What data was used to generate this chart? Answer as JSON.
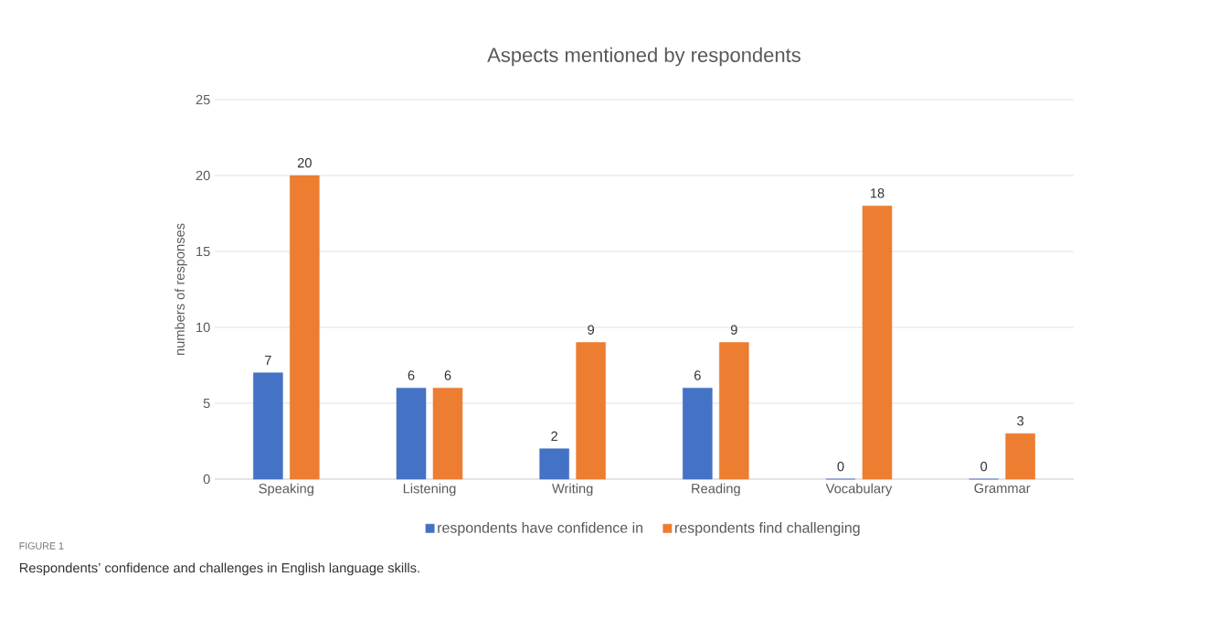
{
  "chart_data": {
    "type": "bar",
    "title": "Aspects mentioned by respondents",
    "ylabel": "numbers of responses",
    "categories": [
      "Speaking",
      "Listening",
      "Writing",
      "Reading",
      "Vocabulary",
      "Grammar"
    ],
    "series": [
      {
        "name": "respondents have confidence in",
        "color": "#4472c4",
        "values": [
          7,
          6,
          2,
          6,
          0,
          0
        ]
      },
      {
        "name": "respondents find challenging",
        "color": "#ed7d31",
        "values": [
          20,
          6,
          9,
          9,
          18,
          3
        ]
      }
    ],
    "ylim": [
      0,
      25
    ],
    "yticks": [
      0,
      5,
      10,
      15,
      20,
      25
    ],
    "grid": "y",
    "legend": "bottom",
    "data_labels": true,
    "annotations": [
      "FIGURE 1",
      "Respondents’ confidence and challenges in English language skills."
    ]
  }
}
